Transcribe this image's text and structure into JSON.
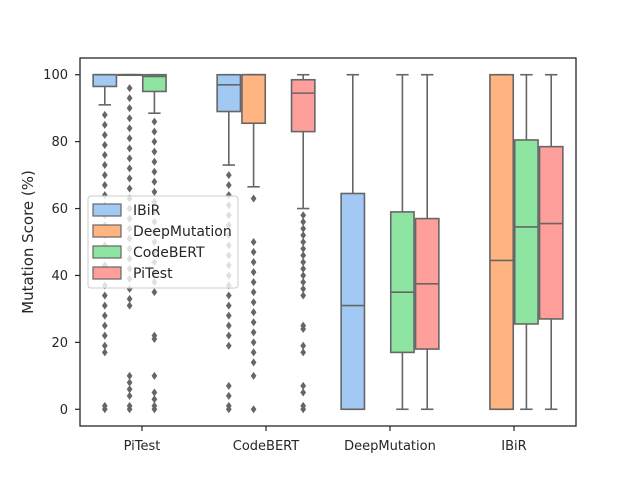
{
  "chart_data": {
    "type": "box",
    "title": "",
    "xlabel": "",
    "ylabel": "Mutation Score (%)",
    "ylim": [
      -5,
      105
    ],
    "yticks": [
      0,
      20,
      40,
      60,
      80,
      100
    ],
    "categories": [
      "PiTest",
      "CodeBERT",
      "DeepMutation",
      "IBiR"
    ],
    "grid": false,
    "legend_position": "center-left",
    "series": [
      {
        "name": "IBiR",
        "color": "#a1c9f4",
        "boxes": [
          {
            "category": "PiTest",
            "q1": 96.5,
            "median": 100,
            "q3": 100,
            "whislo": 91,
            "whishi": 100,
            "fliers": [
              88,
              85,
              82,
              79,
              76,
              73,
              70,
              67,
              64,
              61,
              58,
              55,
              52,
              49,
              46,
              43,
              40,
              37,
              34,
              31,
              28,
              25,
              22,
              19,
              17,
              1,
              0
            ]
          },
          {
            "category": "CodeBERT",
            "q1": 89,
            "median": 97,
            "q3": 100,
            "whislo": 73,
            "whishi": 100,
            "fliers": [
              70,
              67,
              64,
              61,
              58,
              55,
              52,
              49,
              46,
              43,
              40,
              37,
              34,
              31,
              28,
              25,
              22,
              19,
              7,
              4,
              1,
              0
            ]
          },
          {
            "category": "DeepMutation",
            "q1": 0,
            "median": 31,
            "q3": 64.5,
            "whislo": 0,
            "whishi": 100,
            "fliers": []
          },
          {
            "category": "IBiR",
            "q1": null,
            "median": null,
            "q3": null,
            "whislo": null,
            "whishi": null,
            "fliers": []
          }
        ]
      },
      {
        "name": "DeepMutation",
        "color": "#ffb482",
        "boxes": [
          {
            "category": "PiTest",
            "q1": 100,
            "median": 100,
            "q3": 100,
            "whislo": 100,
            "whishi": 100,
            "fliers": [
              96,
              93,
              90,
              87,
              84,
              81,
              78,
              75,
              72,
              69,
              66,
              63,
              60,
              57,
              54,
              51,
              48,
              45,
              42,
              39,
              36,
              33,
              31,
              10,
              8,
              6,
              4,
              1,
              0
            ]
          },
          {
            "category": "CodeBERT",
            "q1": 85.5,
            "median": 100,
            "q3": 100,
            "whislo": 66.5,
            "whishi": 100,
            "fliers": [
              63,
              50,
              47,
              44,
              41,
              38,
              35,
              32,
              29,
              26,
              23,
              20,
              17,
              14,
              10,
              0
            ]
          },
          {
            "category": "DeepMutation",
            "q1": null,
            "median": null,
            "q3": null,
            "whislo": null,
            "whishi": null,
            "fliers": []
          },
          {
            "category": "IBiR",
            "q1": 0,
            "median": 44.5,
            "q3": 100,
            "whislo": 0,
            "whishi": 100,
            "fliers": []
          }
        ]
      },
      {
        "name": "CodeBERT",
        "color": "#8de5a1",
        "boxes": [
          {
            "category": "PiTest",
            "q1": 95,
            "median": 99.5,
            "q3": 100,
            "whislo": 88.5,
            "whishi": 100,
            "fliers": [
              86,
              83,
              80,
              77,
              74,
              71,
              68,
              65,
              62,
              59,
              56,
              53,
              50,
              47,
              44,
              41,
              38,
              35,
              22,
              21,
              10,
              5,
              3,
              1,
              0
            ]
          },
          {
            "category": "CodeBERT",
            "q1": null,
            "median": null,
            "q3": null,
            "whislo": null,
            "whishi": null,
            "fliers": []
          },
          {
            "category": "DeepMutation",
            "q1": 17,
            "median": 35,
            "q3": 59,
            "whislo": 0,
            "whishi": 100,
            "fliers": []
          },
          {
            "category": "IBiR",
            "q1": 25.5,
            "median": 54.5,
            "q3": 80.5,
            "whislo": 0,
            "whishi": 100,
            "fliers": []
          }
        ]
      },
      {
        "name": "PiTest",
        "color": "#ff9f9b",
        "boxes": [
          {
            "category": "PiTest",
            "q1": null,
            "median": null,
            "q3": null,
            "whislo": null,
            "whishi": null,
            "fliers": []
          },
          {
            "category": "CodeBERT",
            "q1": 83,
            "median": 94.5,
            "q3": 98.5,
            "whislo": 60,
            "whishi": 100,
            "fliers": [
              58,
              56,
              54,
              52,
              50,
              48,
              46,
              44,
              42,
              40,
              38,
              36,
              34,
              25,
              24,
              19,
              17,
              7,
              5,
              1,
              0
            ]
          },
          {
            "category": "DeepMutation",
            "q1": 18,
            "median": 37.5,
            "q3": 57,
            "whislo": 0,
            "whishi": 100,
            "fliers": []
          },
          {
            "category": "IBiR",
            "q1": 27,
            "median": 55.5,
            "q3": 78.5,
            "whislo": 0,
            "whishi": 100,
            "fliers": []
          }
        ]
      }
    ]
  }
}
